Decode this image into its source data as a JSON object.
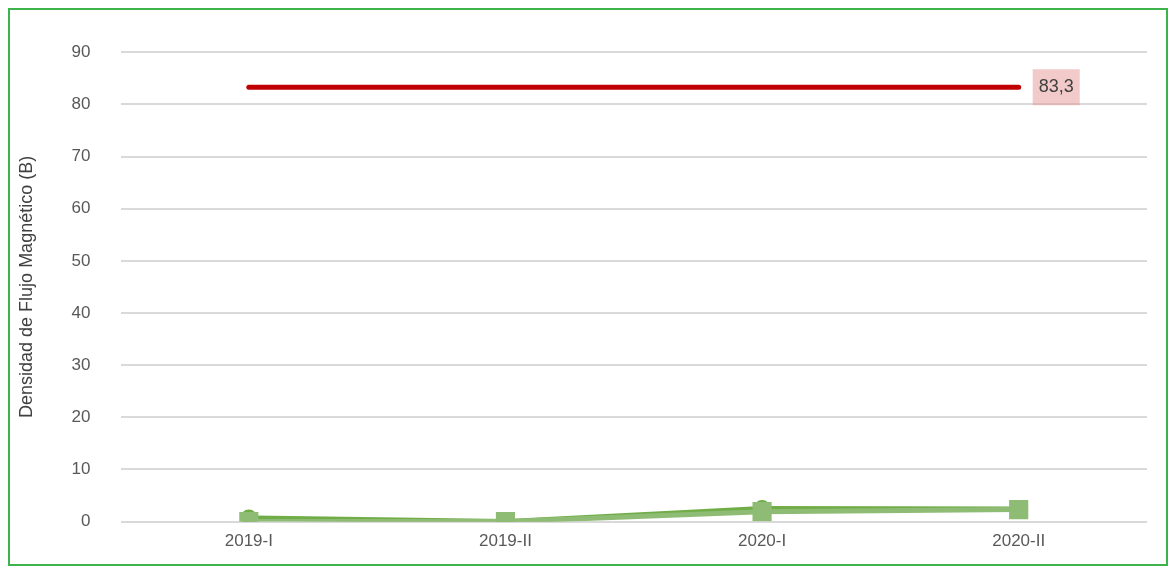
{
  "chart_data": {
    "type": "line",
    "ylabel": "Densidad de Flujo Magnético (B)",
    "categories": [
      "2019-I",
      "2019-II",
      "2020-I",
      "2020-II"
    ],
    "series": [
      {
        "color": "#c00000",
        "values": [
          83.3,
          83.3,
          83.3,
          83.3
        ],
        "marker": "none",
        "value_labels": [
          null,
          null,
          null,
          "83,3"
        ]
      },
      {
        "color": "#70ad47",
        "values": [
          0.7,
          0,
          2.5,
          2.4
        ],
        "marker": "circle"
      },
      {
        "color": "#8fbc74",
        "values": [
          0,
          0,
          1.9,
          2.3
        ],
        "marker": "square"
      }
    ],
    "ylim": [
      0,
      90
    ],
    "yticks": [
      0,
      10,
      20,
      30,
      40,
      50,
      60,
      70,
      80,
      90
    ],
    "grid": "y",
    "legend": false
  }
}
